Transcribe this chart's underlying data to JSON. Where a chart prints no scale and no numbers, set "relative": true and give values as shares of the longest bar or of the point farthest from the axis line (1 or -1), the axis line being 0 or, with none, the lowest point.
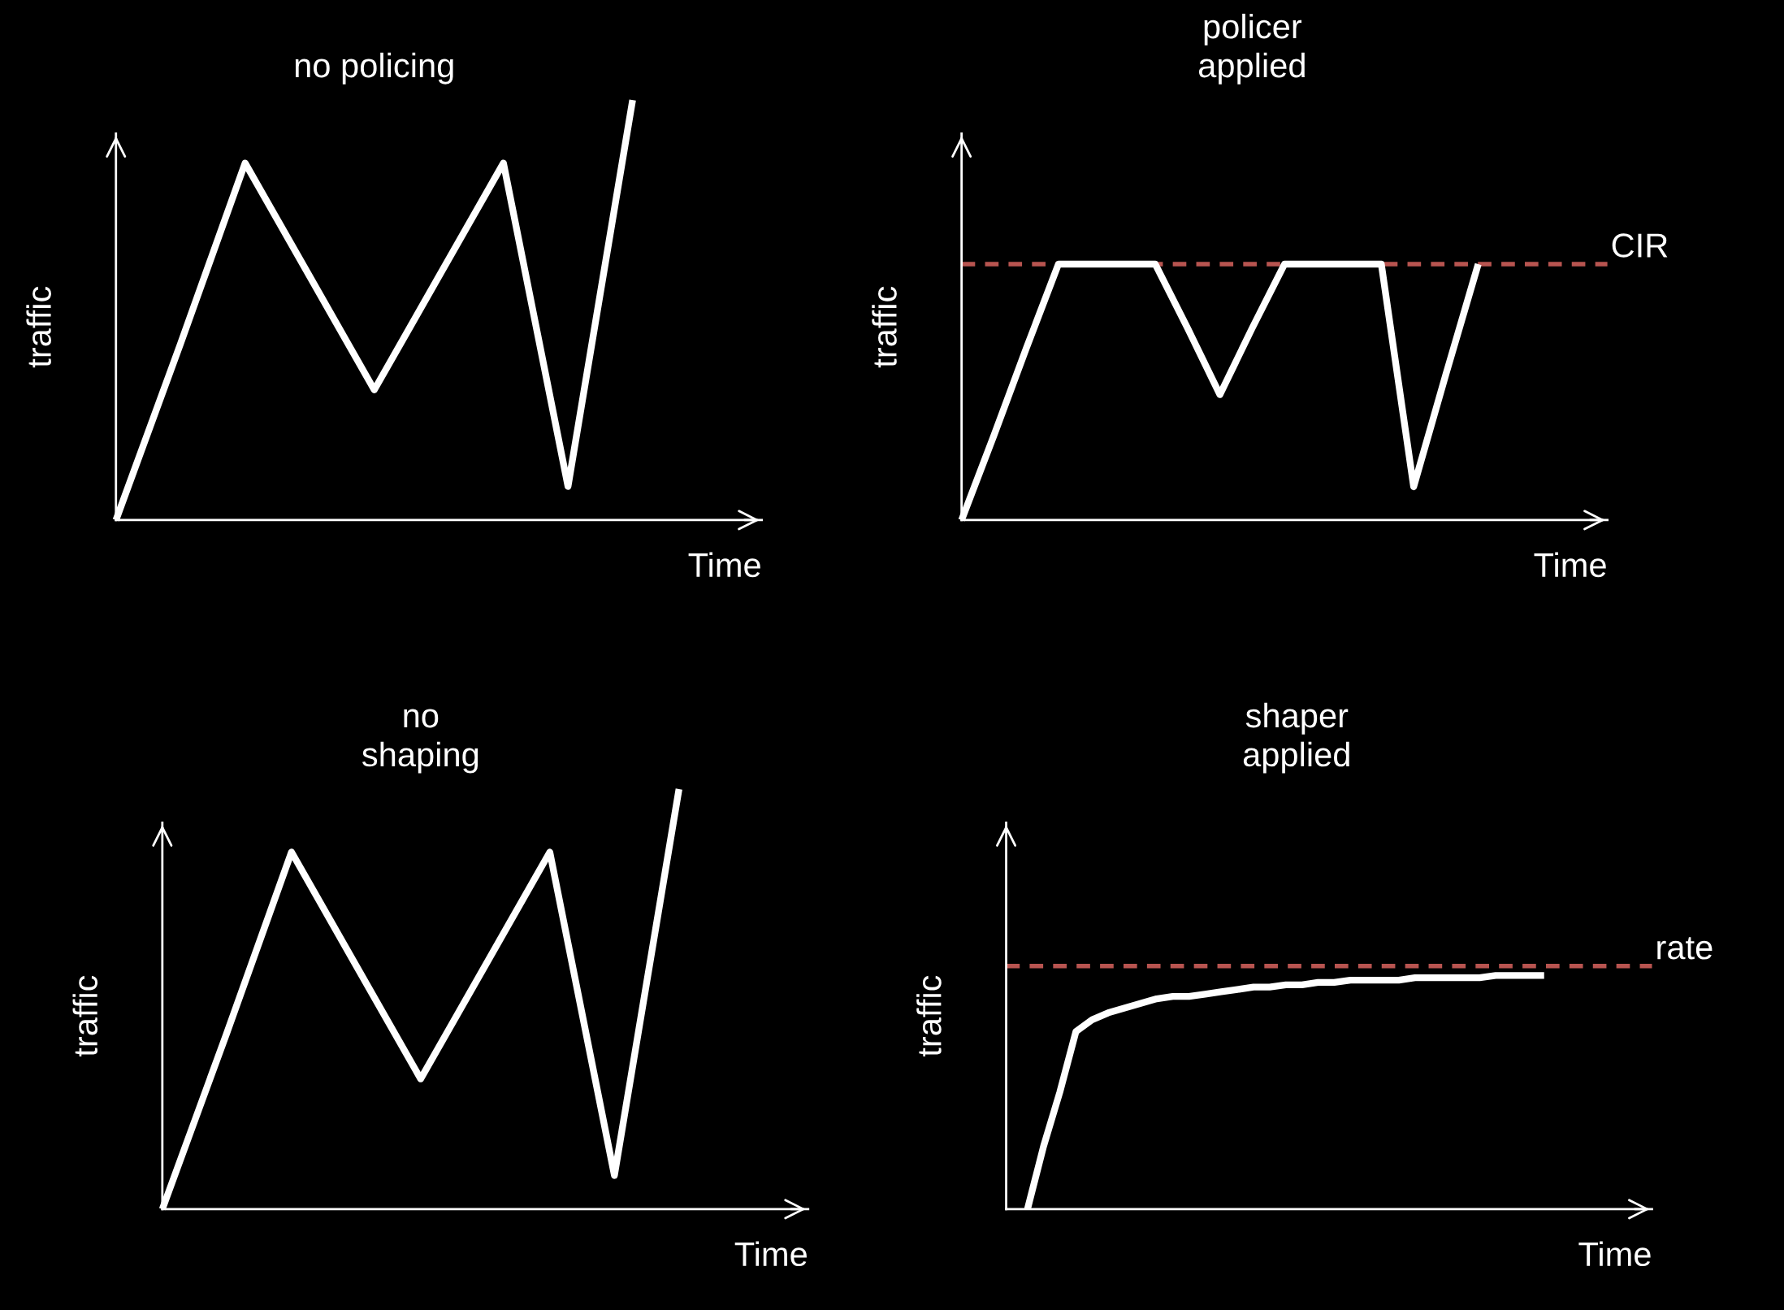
{
  "chart_data": [
    {
      "type": "line",
      "title": "no policing",
      "xlabel": "Time",
      "ylabel": "traffic",
      "relative": true,
      "categories": [
        null,
        null,
        null,
        null,
        null,
        null,
        null,
        null,
        null
      ],
      "series": [
        {
          "color": "#ffffff",
          "values": [
            0,
            0.42,
            0.85,
            0.58,
            0.31,
            0.58,
            0.85,
            0.08,
            1
          ]
        }
      ]
    },
    {
      "type": "line",
      "title": "policer\napplied",
      "xlabel": "Time",
      "ylabel": "traffic",
      "relative": true,
      "categories": [
        null,
        null,
        null,
        null,
        null,
        null,
        null,
        null,
        null,
        null,
        null,
        null,
        null,
        null,
        null,
        null,
        null
      ],
      "series": [
        {
          "color": "#ffffff",
          "values": [
            0,
            0.33,
            0.67,
            1,
            1,
            1,
            1,
            0.75,
            0.49,
            0.75,
            1,
            1,
            1,
            1,
            0.13,
            0.57,
            1
          ]
        }
      ],
      "ref_lines": [
        {
          "axis": "y",
          "value": 1,
          "label": "CIR",
          "color": "#b85450",
          "line_style": "dashed"
        }
      ]
    },
    {
      "type": "line",
      "title": "no\nshaping",
      "xlabel": "Time",
      "ylabel": "traffic",
      "relative": true,
      "categories": [
        null,
        null,
        null,
        null,
        null,
        null,
        null,
        null,
        null
      ],
      "series": [
        {
          "color": "#ffffff",
          "values": [
            0,
            0.42,
            0.85,
            0.58,
            0.31,
            0.58,
            0.85,
            0.08,
            1
          ]
        }
      ]
    },
    {
      "type": "line",
      "title": "shaper\napplied",
      "xlabel": "Time",
      "ylabel": "traffic",
      "relative": true,
      "categories": [
        null,
        null,
        null,
        null,
        null,
        null,
        null,
        null,
        null,
        null,
        null,
        null,
        null,
        null,
        null,
        null,
        null,
        null,
        null,
        null,
        null,
        null,
        null,
        null,
        null,
        null,
        null,
        null,
        null,
        null,
        null,
        null,
        null
      ],
      "series": [
        {
          "color": "#ffffff",
          "values": [
            0,
            0.27,
            0.5,
            0.76,
            0.81,
            0.84,
            0.86,
            0.88,
            0.9,
            0.91,
            0.91,
            0.92,
            0.93,
            0.94,
            0.95,
            0.95,
            0.96,
            0.96,
            0.97,
            0.97,
            0.98,
            0.98,
            0.98,
            0.98,
            0.99,
            0.99,
            0.99,
            0.99,
            0.99,
            1,
            1,
            1,
            1
          ]
        }
      ],
      "ref_lines": [
        {
          "axis": "y",
          "value": 1.04,
          "label": "rate",
          "color": "#b85450",
          "line_style": "dashed"
        }
      ]
    }
  ]
}
